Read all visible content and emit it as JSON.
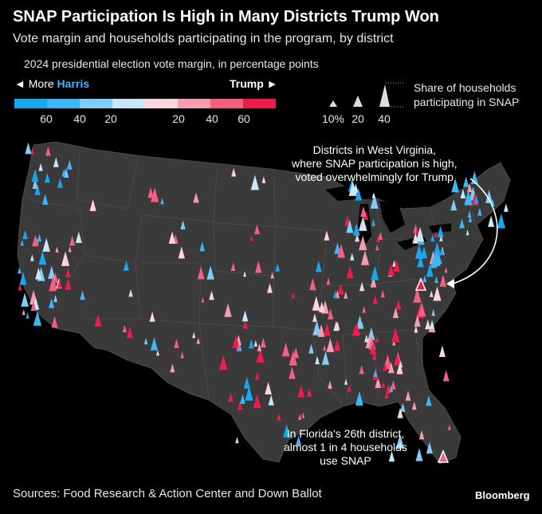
{
  "title": "SNAP Participation Is High in Many Districts Trump Won",
  "subtitle": "Vote margin and households participating in the program, by district",
  "legend": {
    "caption": "2024 presidential election vote margin, in percentage points",
    "left_arrow": "◄",
    "left_label": "More",
    "harris_label": "Harris",
    "trump_label": "Trump",
    "right_arrow": "►",
    "colors": [
      "#1aa7f2",
      "#3fb6f5",
      "#7fcdf7",
      "#c7e8fa",
      "#fbd5de",
      "#f79db1",
      "#f55f82",
      "#ee1c4b"
    ],
    "ticks": [
      "60",
      "40",
      "20",
      "20",
      "40",
      "60"
    ],
    "size_title_line1": "Share of households",
    "size_title_line2": "participating in SNAP",
    "size_ticks": [
      "10%",
      "20",
      "40"
    ]
  },
  "annotations": {
    "west_virginia": [
      "Districts in West Virginia,",
      "where SNAP participation is high,",
      "voted overwhelmingly for Trump"
    ],
    "florida": [
      "In Florida's 26th district,",
      "almost 1 in 4 households",
      "use SNAP"
    ]
  },
  "source": "Sources: Food Research & Action Center and Down Ballot",
  "brand": "Bloomberg"
}
